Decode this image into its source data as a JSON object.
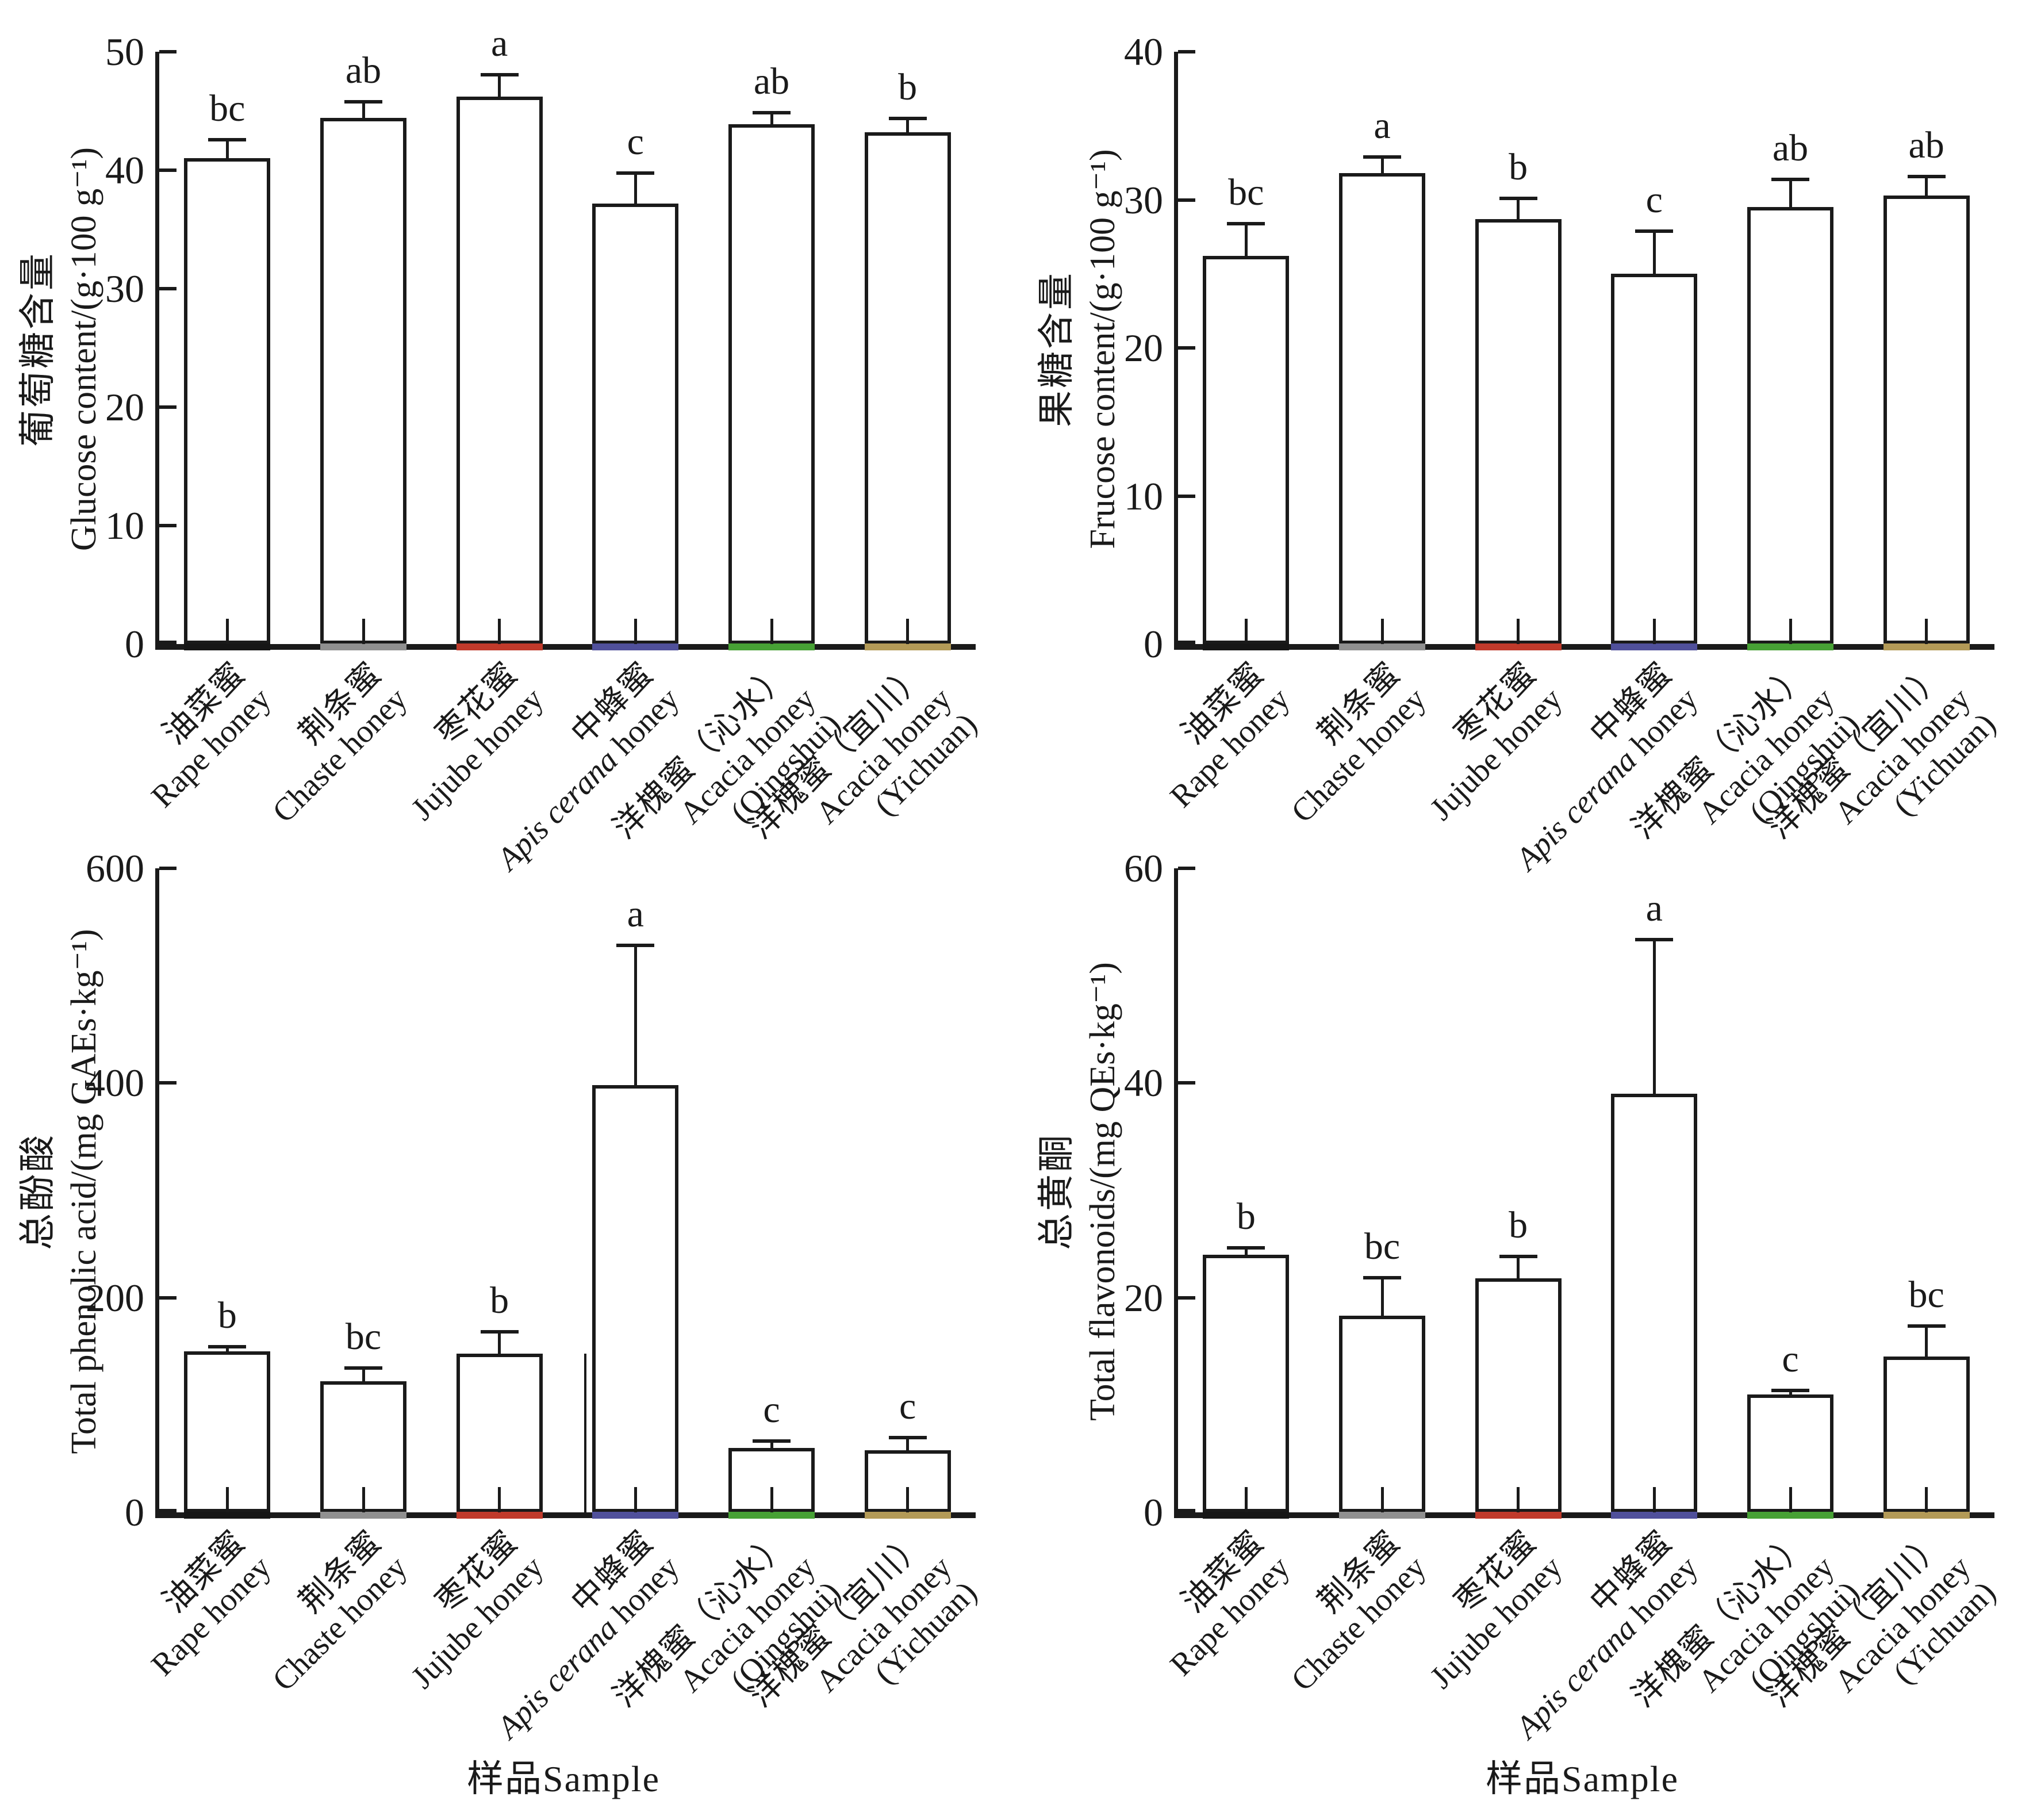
{
  "categories": [
    {
      "zh": "油菜蜜",
      "en": "Rape honey"
    },
    {
      "zh": "荆条蜜",
      "en": "Chaste honey"
    },
    {
      "zh": "枣花蜜",
      "en": "Jujube honey"
    },
    {
      "zh": "中蜂蜜",
      "en_italic": "Apis cerana",
      "en": " honey"
    },
    {
      "zh": "洋槐蜜（沁水）",
      "en": "Acacia honey",
      "en2": "(Qingshui)"
    },
    {
      "zh": "洋槐蜜（宜川）",
      "en": "Acacia honey",
      "en2": "(Yichuan)"
    }
  ],
  "chart_data": [
    {
      "type": "bar",
      "position": "top-left",
      "title_zh": "葡萄糖含量",
      "title_en": "Glucose content/(g·100 g⁻¹)",
      "ylim": [
        0,
        50
      ],
      "yticks": [
        0,
        10,
        20,
        30,
        40,
        50
      ],
      "values": [
        41.0,
        44.4,
        46.2,
        37.2,
        43.9,
        43.2
      ],
      "errors": [
        1.7,
        1.5,
        2.0,
        2.7,
        1.1,
        1.3
      ],
      "sig_letters": [
        "bc",
        "ab",
        "a",
        "c",
        "ab",
        "b"
      ]
    },
    {
      "type": "bar",
      "position": "top-right",
      "title_zh": "果糖含量",
      "title_en": "Frucose content/(g·100 g⁻¹)",
      "ylim": [
        0,
        40
      ],
      "yticks": [
        0,
        10,
        20,
        30,
        40
      ],
      "values": [
        26.2,
        31.8,
        28.7,
        25.0,
        29.5,
        30.3
      ],
      "errors": [
        2.3,
        1.2,
        1.5,
        3.0,
        2.0,
        1.4
      ],
      "sig_letters": [
        "bc",
        "a",
        "b",
        "c",
        "ab",
        "ab"
      ]
    },
    {
      "type": "bar",
      "position": "bottom-left",
      "title_zh": "总酚酸",
      "title_en": "Total phenolic acid/(mg GAEs·kg⁻¹)",
      "ylim": [
        0,
        600
      ],
      "yticks": [
        0,
        200,
        400,
        600
      ],
      "values": [
        150,
        122,
        148,
        398,
        60,
        58
      ],
      "errors": [
        6,
        14,
        22,
        132,
        8,
        13
      ],
      "sig_letters": [
        "b",
        "bc",
        "b",
        "a",
        "c",
        "c"
      ],
      "xlabel": "样品Sample",
      "artifact_line": {
        "category_index": 3,
        "value": 148
      }
    },
    {
      "type": "bar",
      "position": "bottom-right",
      "title_zh": "总黄酮",
      "title_en": "Total flavonoids/(mg QEs·kg⁻¹)",
      "ylim": [
        0,
        60
      ],
      "yticks": [
        0,
        20,
        40,
        60
      ],
      "values": [
        24.0,
        18.3,
        21.8,
        39.0,
        11.0,
        14.5
      ],
      "errors": [
        0.8,
        3.7,
        2.2,
        14.5,
        0.5,
        3.0
      ],
      "sig_letters": [
        "b",
        "bc",
        "b",
        "a",
        "c",
        "bc"
      ],
      "xlabel": "样品Sample"
    }
  ],
  "style": {
    "axis_color": "#1a1a1a",
    "bar_fill": "#ffffff",
    "bar_border": "#1a1a1a",
    "base_strip_colors": [
      "#161616",
      "#909090",
      "#c03a2b",
      "#50509b",
      "#47a135",
      "#b39a57"
    ]
  }
}
